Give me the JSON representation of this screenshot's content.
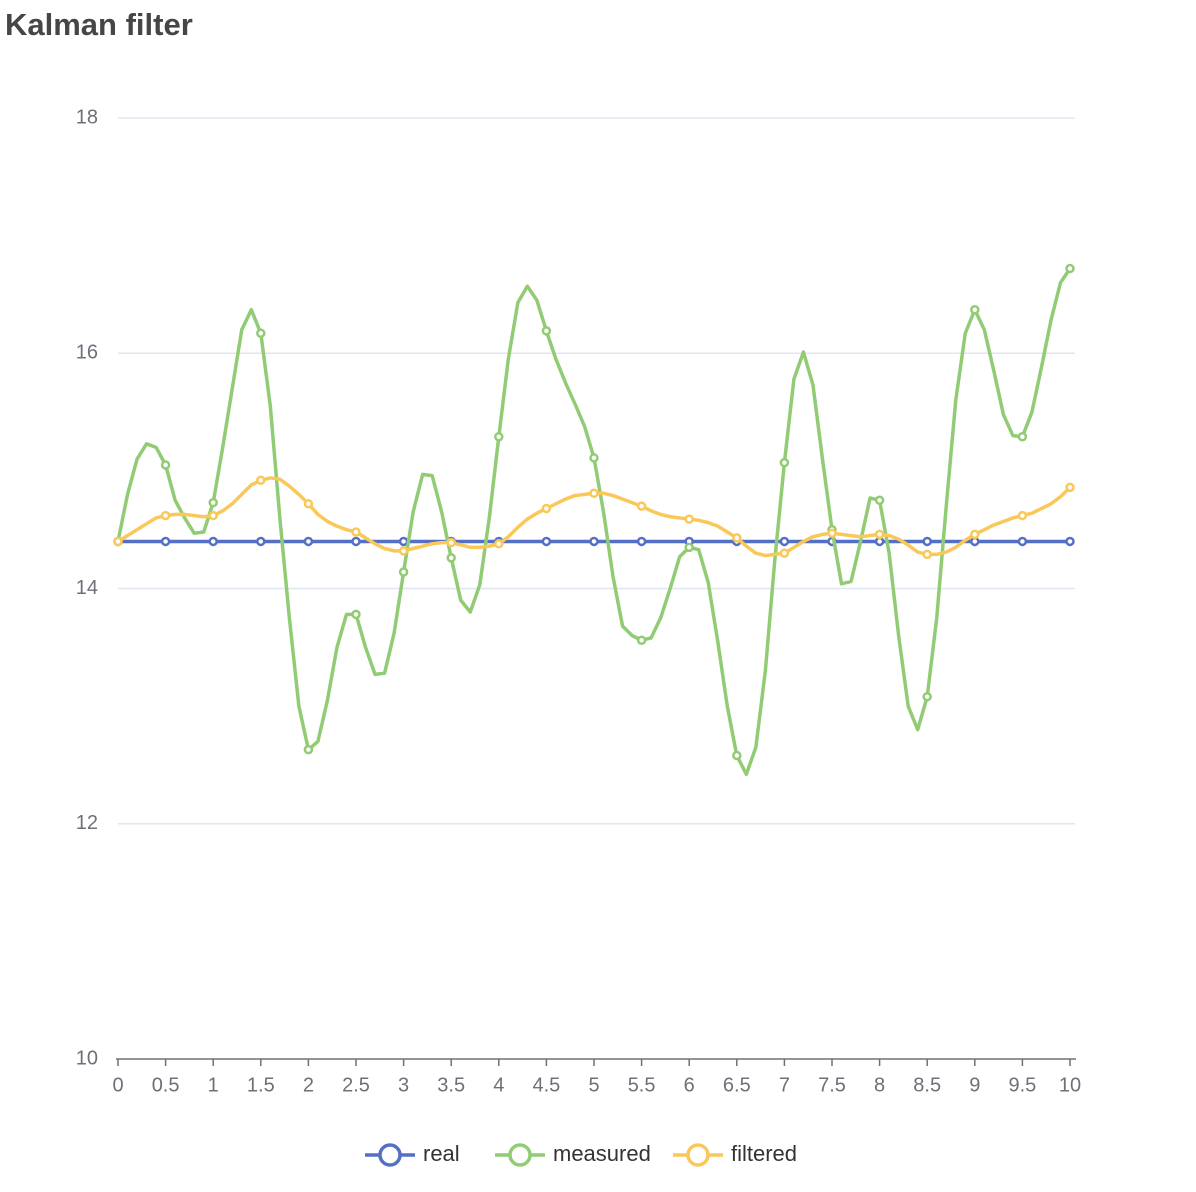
{
  "chart_data": {
    "type": "line",
    "title": "Kalman filter",
    "x": [
      0,
      0.1,
      0.2,
      0.3,
      0.4,
      0.5,
      0.6,
      0.7,
      0.8,
      0.9,
      1,
      1.1,
      1.2,
      1.3,
      1.4,
      1.5,
      1.6,
      1.7,
      1.8,
      1.9,
      2,
      2.1,
      2.2,
      2.3,
      2.4,
      2.5,
      2.6,
      2.7,
      2.8,
      2.9,
      3,
      3.1,
      3.2,
      3.3,
      3.4,
      3.5,
      3.6,
      3.7,
      3.8,
      3.9,
      4,
      4.1,
      4.2,
      4.3,
      4.4,
      4.5,
      4.6,
      4.7,
      4.8,
      4.9,
      5,
      5.1,
      5.2,
      5.3,
      5.4,
      5.5,
      5.6,
      5.7,
      5.8,
      5.9,
      6,
      6.1,
      6.2,
      6.3,
      6.4,
      6.5,
      6.6,
      6.7,
      6.8,
      6.9,
      7,
      7.1,
      7.2,
      7.3,
      7.4,
      7.5,
      7.6,
      7.7,
      7.8,
      7.9,
      8,
      8.1,
      8.2,
      8.3,
      8.4,
      8.5,
      8.6,
      8.7,
      8.8,
      8.9,
      9,
      9.1,
      9.2,
      9.3,
      9.4,
      9.5,
      9.6,
      9.7,
      9.8,
      9.9,
      10
    ],
    "series": [
      {
        "name": "real",
        "color": "#5470c6",
        "values": [
          14.4,
          14.4,
          14.4,
          14.4,
          14.4,
          14.4,
          14.4,
          14.4,
          14.4,
          14.4,
          14.4,
          14.4,
          14.4,
          14.4,
          14.4,
          14.4,
          14.4,
          14.4,
          14.4,
          14.4,
          14.4,
          14.4,
          14.4,
          14.4,
          14.4,
          14.4,
          14.4,
          14.4,
          14.4,
          14.4,
          14.4,
          14.4,
          14.4,
          14.4,
          14.4,
          14.4,
          14.4,
          14.4,
          14.4,
          14.4,
          14.4,
          14.4,
          14.4,
          14.4,
          14.4,
          14.4,
          14.4,
          14.4,
          14.4,
          14.4,
          14.4,
          14.4,
          14.4,
          14.4,
          14.4,
          14.4,
          14.4,
          14.4,
          14.4,
          14.4,
          14.4,
          14.4,
          14.4,
          14.4,
          14.4,
          14.4,
          14.4,
          14.4,
          14.4,
          14.4,
          14.4,
          14.4,
          14.4,
          14.4,
          14.4,
          14.4,
          14.4,
          14.4,
          14.4,
          14.4,
          14.4,
          14.4,
          14.4,
          14.4,
          14.4,
          14.4,
          14.4,
          14.4,
          14.4,
          14.4,
          14.4,
          14.4,
          14.4,
          14.4,
          14.4,
          14.4,
          14.4,
          14.4,
          14.4,
          14.4,
          14.4
        ]
      },
      {
        "name": "measured",
        "color": "#91cc75",
        "values": [
          14.4,
          14.8,
          15.1,
          15.23,
          15.2,
          15.05,
          14.75,
          14.6,
          14.47,
          14.48,
          14.73,
          15.2,
          15.7,
          16.2,
          16.37,
          16.17,
          15.55,
          14.6,
          13.75,
          13.0,
          12.63,
          12.7,
          13.05,
          13.5,
          13.78,
          13.78,
          13.5,
          13.27,
          13.28,
          13.62,
          14.14,
          14.65,
          14.97,
          14.96,
          14.65,
          14.26,
          13.9,
          13.8,
          14.03,
          14.6,
          15.29,
          15.95,
          16.43,
          16.57,
          16.45,
          16.19,
          15.95,
          15.75,
          15.57,
          15.38,
          15.11,
          14.65,
          14.1,
          13.68,
          13.6,
          13.56,
          13.58,
          13.75,
          14.0,
          14.27,
          14.35,
          14.33,
          14.05,
          13.55,
          13.0,
          12.58,
          12.42,
          12.65,
          13.3,
          14.25,
          15.07,
          15.78,
          16.01,
          15.73,
          15.1,
          14.5,
          14.04,
          14.06,
          14.4,
          14.77,
          14.75,
          14.3,
          13.6,
          13.0,
          12.8,
          13.08,
          13.75,
          14.7,
          15.6,
          16.17,
          16.37,
          16.2,
          15.85,
          15.48,
          15.3,
          15.29,
          15.5,
          15.88,
          16.28,
          16.6,
          16.72
        ]
      },
      {
        "name": "filtered",
        "color": "#fac858",
        "values": [
          14.4,
          14.45,
          14.5,
          14.55,
          14.6,
          14.62,
          14.63,
          14.63,
          14.62,
          14.61,
          14.62,
          14.66,
          14.72,
          14.8,
          14.88,
          14.92,
          14.94,
          14.93,
          14.87,
          14.8,
          14.72,
          14.63,
          14.57,
          14.53,
          14.5,
          14.48,
          14.43,
          14.38,
          14.34,
          14.32,
          14.32,
          14.34,
          14.36,
          14.38,
          14.39,
          14.39,
          14.37,
          14.35,
          14.35,
          14.36,
          14.38,
          14.44,
          14.52,
          14.59,
          14.64,
          14.68,
          14.72,
          14.76,
          14.79,
          14.8,
          14.81,
          14.81,
          14.79,
          14.76,
          14.73,
          14.7,
          14.66,
          14.63,
          14.61,
          14.6,
          14.59,
          14.58,
          14.56,
          14.53,
          14.48,
          14.43,
          14.36,
          14.3,
          14.28,
          14.29,
          14.3,
          14.35,
          14.4,
          14.44,
          14.46,
          14.47,
          14.46,
          14.45,
          14.44,
          14.45,
          14.46,
          14.45,
          14.42,
          14.37,
          14.31,
          14.29,
          14.29,
          14.31,
          14.35,
          14.41,
          14.46,
          14.5,
          14.54,
          14.57,
          14.6,
          14.62,
          14.64,
          14.68,
          14.72,
          14.78,
          14.86
        ]
      }
    ],
    "xlim": [
      0,
      10
    ],
    "xticks": [
      0,
      0.5,
      1,
      1.5,
      2,
      2.5,
      3,
      3.5,
      4,
      4.5,
      5,
      5.5,
      6,
      6.5,
      7,
      7.5,
      8,
      8.5,
      9,
      9.5,
      10
    ],
    "ylim": [
      10,
      18
    ],
    "yticks": [
      10,
      12,
      14,
      16,
      18
    ],
    "grid": true,
    "legend": "bottom"
  }
}
